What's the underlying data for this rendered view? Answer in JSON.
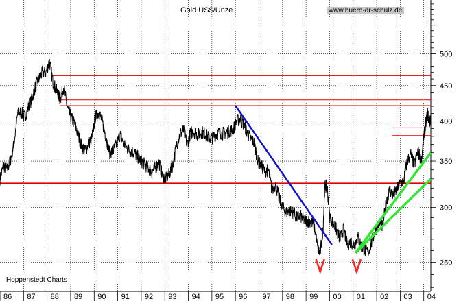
{
  "header": {
    "title": "Gold US$/Unze",
    "url": "www.buero-dr-schulz.de"
  },
  "footer": {
    "source": "Hoppenstedt Charts"
  },
  "colors": {
    "price": "#000000",
    "support": "#e00000",
    "downtrend": "#1010d0",
    "uptrend": "#33e633",
    "grid": "#000000",
    "v_marks": "#ff2020"
  },
  "chart_data": {
    "type": "line",
    "title": "Gold US$/Unze",
    "x_tick_labels": [
      "86",
      "87",
      "88",
      "89",
      "90",
      "91",
      "92",
      "93",
      "94",
      "95",
      "96",
      "97",
      "98",
      "99",
      "00",
      "01",
      "02",
      "03",
      "04"
    ],
    "y_tick_labels": [
      "500",
      "450",
      "400",
      "350",
      "300",
      "250"
    ],
    "y_ticks": [
      500,
      450,
      400,
      350,
      300,
      250
    ],
    "xlim": [
      1986.0,
      2004.3
    ],
    "ylim": [
      227,
      598
    ],
    "y_scale": "log",
    "grid": true,
    "series": [
      {
        "values_note": "",
        "x": [
          1986.0,
          1986.15,
          1986.3,
          1986.45,
          1986.6,
          1986.75,
          1986.9,
          1987.05,
          1987.2,
          1987.35,
          1987.5,
          1987.65,
          1987.8,
          1987.95,
          1988.1,
          1988.25,
          1988.4,
          1988.55,
          1988.7,
          1988.85,
          1989.0,
          1989.15,
          1989.3,
          1989.45,
          1989.6,
          1989.75,
          1989.9,
          1990.05,
          1990.2,
          1990.35,
          1990.5,
          1990.65,
          1990.8,
          1990.95,
          1991.1,
          1991.25,
          1991.4,
          1991.55,
          1991.7,
          1991.85,
          1992.0,
          1992.15,
          1992.3,
          1992.45,
          1992.6,
          1992.75,
          1992.9,
          1993.05,
          1993.2,
          1993.35,
          1993.5,
          1993.65,
          1993.8,
          1993.95,
          1994.1,
          1994.25,
          1994.4,
          1994.55,
          1994.7,
          1994.85,
          1995.0,
          1995.15,
          1995.3,
          1995.45,
          1995.6,
          1995.75,
          1995.9,
          1996.05,
          1996.2,
          1996.35,
          1996.5,
          1996.65,
          1996.8,
          1996.95,
          1997.1,
          1997.25,
          1997.4,
          1997.55,
          1997.7,
          1997.85,
          1998.0,
          1998.15,
          1998.3,
          1998.45,
          1998.6,
          1998.75,
          1998.9,
          1999.05,
          1999.2,
          1999.35,
          1999.5,
          1999.6,
          1999.72,
          1999.8,
          1999.9,
          2000.0,
          2000.15,
          2000.3,
          2000.45,
          2000.6,
          2000.75,
          2000.9,
          2001.05,
          2001.2,
          2001.35,
          2001.5,
          2001.65,
          2001.8,
          2001.95,
          2002.1,
          2002.25,
          2002.4,
          2002.55,
          2002.7,
          2002.85,
          2003.0,
          2003.15,
          2003.3,
          2003.45,
          2003.6,
          2003.75,
          2003.9,
          2004.0,
          2004.08,
          2004.16,
          2004.24,
          2004.3
        ],
        "values": [
          330,
          345,
          340,
          352,
          372,
          410,
          412,
          405,
          418,
          430,
          448,
          460,
          470,
          470,
          488,
          455,
          442,
          430,
          448,
          420,
          405,
          398,
          384,
          370,
          362,
          370,
          378,
          405,
          412,
          398,
          380,
          360,
          362,
          370,
          382,
          372,
          365,
          362,
          360,
          355,
          350,
          346,
          342,
          338,
          342,
          349,
          333,
          330,
          336,
          346,
          370,
          383,
          388,
          370,
          385,
          386,
          382,
          386,
          384,
          379,
          378,
          382,
          385,
          384,
          385,
          387,
          388,
          400,
          403,
          396,
          385,
          377,
          372,
          350,
          345,
          338,
          340,
          318,
          324,
          310,
          300,
          295,
          297,
          295,
          290,
          292,
          288,
          287,
          287,
          282,
          261,
          258,
          278,
          323,
          320,
          292,
          285,
          278,
          270,
          280,
          265,
          268,
          265,
          272,
          264,
          260,
          259,
          268,
          279,
          285,
          281,
          305,
          318,
          312,
          318,
          325,
          328,
          350,
          358,
          345,
          362,
          350,
          380,
          395,
          410,
          398,
          405
        ]
      }
    ],
    "annotations": [
      {
        "kind": "support",
        "y": 465,
        "x_range": [
          1988.2,
          2004.3
        ]
      },
      {
        "kind": "support",
        "y": 429,
        "x_range": [
          1988.55,
          2004.3
        ]
      },
      {
        "kind": "support",
        "y": 421,
        "x_range": [
          1988.55,
          2004.3
        ]
      },
      {
        "kind": "support",
        "y": 391,
        "x_range": [
          2002.65,
          2004.3
        ]
      },
      {
        "kind": "support",
        "y": 381,
        "x_range": [
          2002.65,
          2004.3
        ]
      },
      {
        "kind": "support",
        "y": 325,
        "x_range": [
          1986.0,
          2004.3
        ]
      },
      {
        "kind": "downtrend",
        "from": [
          1996.0,
          421
        ],
        "to": [
          2000.1,
          265
        ]
      },
      {
        "kind": "uptrend",
        "from": [
          2001.1,
          258
        ],
        "to": [
          2004.3,
          330
        ]
      },
      {
        "kind": "uptrend",
        "from": [
          2001.1,
          258
        ],
        "to": [
          2004.3,
          360
        ]
      },
      {
        "kind": "v-mark",
        "at": [
          1999.6,
          248
        ]
      },
      {
        "kind": "v-mark",
        "at": [
          2001.15,
          248
        ]
      }
    ]
  }
}
